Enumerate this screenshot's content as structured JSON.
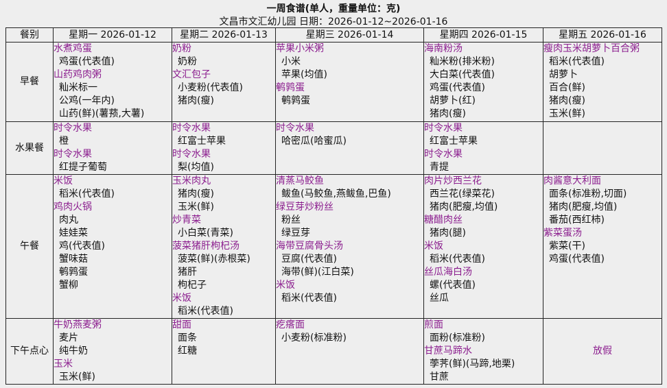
{
  "title": "一周食谱(单人，重量单位：克)",
  "subtitle": "文昌市文汇幼儿园  日期：2026-01-12~2026-01-16",
  "colors": {
    "dish": "#8b1d8e",
    "background": "#eeeeee",
    "spellcheck": "#c0283c"
  },
  "header": {
    "meal_label": "餐别",
    "days": [
      "星期一 2026-01-12",
      "星期二 2026-01-13",
      "星期三 2026-01-14",
      "星期四 2026-01-15",
      "星期五 2026-01-16"
    ]
  },
  "rows": [
    {
      "meal": "早餐",
      "cells": [
        [
          {
            "dish": "水煮鸡蛋",
            "items": [
              "鸡蛋(代表值)"
            ]
          },
          {
            "dish": "山药鸡肉粥",
            "items": [
              "籼米标一",
              "公鸡(一年内)",
              "山药(鲜)(薯蓣,大薯)"
            ]
          }
        ],
        [
          {
            "dish": "奶粉",
            "items": [
              "奶粉"
            ]
          },
          {
            "dish": "文汇包子",
            "items": [
              "小麦粉(代表值)",
              "猪肉(瘦)"
            ]
          }
        ],
        [
          {
            "dish": "苹果小米粥",
            "items": [
              "小米",
              "苹果(均值)"
            ]
          },
          {
            "dish": "鹌鹑蛋",
            "items": [
              "鹌鹑蛋"
            ]
          }
        ],
        [
          {
            "dish": "海南粉汤",
            "items": [
              "籼米粉(排米粉)",
              "大白菜(代表值)",
              "鸡蛋(代表值)",
              "胡萝卜(红)",
              "猪肉(瘦)"
            ]
          }
        ],
        [
          {
            "dish": "瘦肉玉米胡萝卜百合粥",
            "items": [
              "稻米(代表值)",
              "胡萝卜",
              "百合(鲜)",
              "猪肉(瘦)",
              "玉米(鲜)"
            ]
          }
        ]
      ]
    },
    {
      "meal": "水果餐",
      "cells": [
        [
          {
            "dish": "时令水果",
            "items": [
              "橙"
            ]
          },
          {
            "dish": "时令水果",
            "items": [
              "红提子葡萄"
            ]
          }
        ],
        [
          {
            "dish": "时令水果",
            "items": [
              "红富士苹果"
            ]
          },
          {
            "dish": "时令水果",
            "items": [
              "梨(均值)"
            ]
          }
        ],
        [
          {
            "dish": "时令水果",
            "items": [
              "哈密瓜(哈蜜瓜)"
            ]
          }
        ],
        [
          {
            "dish": "时令水果",
            "items": [
              "红富士苹果"
            ]
          },
          {
            "dish": "时令水果",
            "items": [
              "青提"
            ]
          }
        ],
        []
      ]
    },
    {
      "meal": "午餐",
      "cells": [
        [
          {
            "dish": "米饭",
            "items": [
              "稻米(代表值)"
            ]
          },
          {
            "dish": "鸡肉火锅",
            "items": [
              "肉丸",
              "娃娃菜",
              "鸡(代表值)",
              "蟹味菇",
              "鹌鹑蛋",
              "蟹柳"
            ]
          }
        ],
        [
          {
            "dish": "玉米肉丸",
            "items": [
              "猪肉(瘦)",
              "玉米(鲜)"
            ]
          },
          {
            "dish": "炒青菜",
            "items": [
              "小白菜(青菜)"
            ]
          },
          {
            "dish": "菠菜猪肝枸杞汤",
            "items": [
              "菠菜(鲜)(赤根菜)",
              "猪肝",
              "枸杞子"
            ]
          },
          {
            "dish": "米饭",
            "items": [
              "稻米(代表值)"
            ]
          }
        ],
        [
          {
            "dish": "清蒸马鲛鱼",
            "items": [
              "鲅鱼(马鲛鱼,燕鲅鱼,巴鱼)"
            ]
          },
          {
            "dish": "绿豆芽炒粉丝",
            "items": [
              "粉丝",
              "绿豆芽"
            ]
          },
          {
            "dish": "海带豆腐骨头汤",
            "items": [
              "豆腐(代表值)",
              "海带(鲜)(江白菜)"
            ]
          },
          {
            "dish": "米饭",
            "items": [
              "稻米(代表值)"
            ]
          }
        ],
        [
          {
            "dish": "肉片炒西兰花",
            "items": [
              "西兰花(绿菜花)",
              "猪肉(肥瘦,均值)"
            ]
          },
          {
            "dish": "糖醋肉丝",
            "items": [
              "猪肉(腿)"
            ]
          },
          {
            "dish": "米饭",
            "items": [
              "稻米(代表值)"
            ]
          },
          {
            "dish": "丝瓜海白汤",
            "items": [
              "螺(代表值)",
              "丝瓜"
            ]
          }
        ],
        [
          {
            "dish": "肉酱意大利面",
            "items": [
              "面条(标准粉,切面)",
              "猪肉(肥瘦,均值)",
              "番茄(西红柿)"
            ]
          },
          {
            "dish": "紫菜蛋汤",
            "items": [
              "紫菜(干)",
              "鸡蛋(代表值)"
            ]
          }
        ]
      ]
    },
    {
      "meal": "下午点心",
      "cells": [
        [
          {
            "dish": "牛奶燕麦粥",
            "items": [
              "麦片",
              "纯牛奶"
            ]
          },
          {
            "dish": "玉米",
            "items": [
              "玉米(鲜)"
            ]
          }
        ],
        [
          {
            "dish": "甜面",
            "items": [
              "面条",
              "红糖"
            ]
          }
        ],
        [
          {
            "dish": "疙瘩面",
            "items": [
              "小麦粉(标准粉)"
            ]
          }
        ],
        [
          {
            "dish": "煎面",
            "items": [
              "面粉(标准粉)"
            ]
          },
          {
            "dish": "甘蔗马蹄水",
            "items": [
              "荸荠(鲜)(马蹄,地栗)",
              "甘蔗"
            ]
          }
        ],
        "放假"
      ]
    }
  ]
}
